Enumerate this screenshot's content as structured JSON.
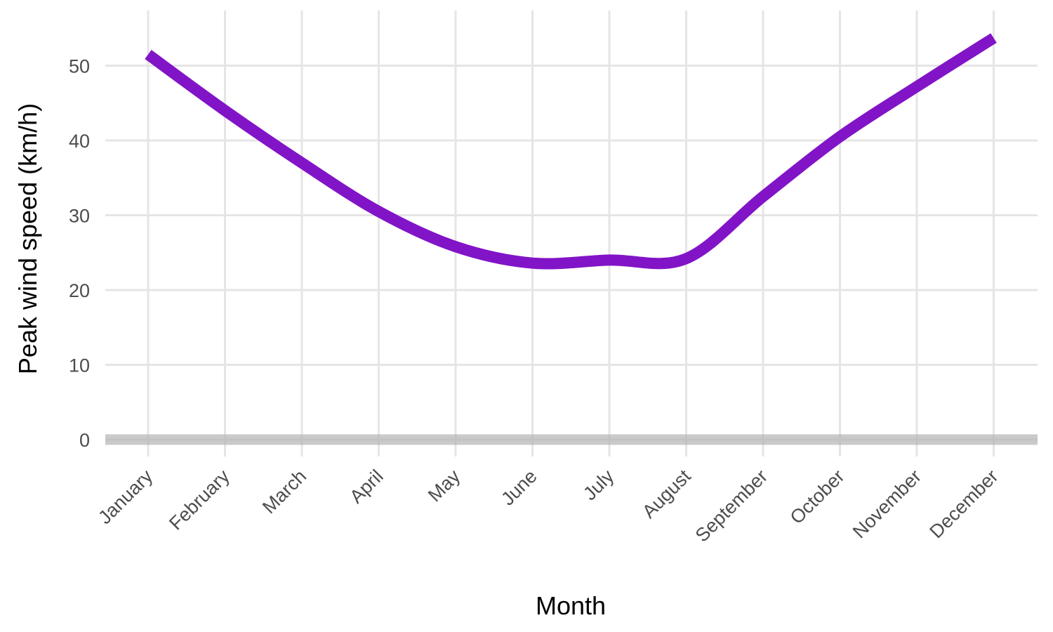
{
  "chart_data": {
    "type": "line",
    "xlabel": "Month",
    "ylabel": "Peak wind speed (km/h)",
    "categories": [
      "January",
      "February",
      "March",
      "April",
      "May",
      "June",
      "July",
      "August",
      "September",
      "October",
      "November",
      "December"
    ],
    "y_ticks": [
      0,
      10,
      20,
      30,
      40,
      50
    ],
    "ylim": [
      -1,
      56
    ],
    "grid": true,
    "reference_line_y": 0,
    "series": [
      {
        "color": "#8214C8",
        "values": [
          51.5,
          44.0,
          37.0,
          30.5,
          25.8,
          23.6,
          24.0,
          24.2,
          32.5,
          40.5,
          47.2,
          53.7
        ]
      }
    ]
  }
}
